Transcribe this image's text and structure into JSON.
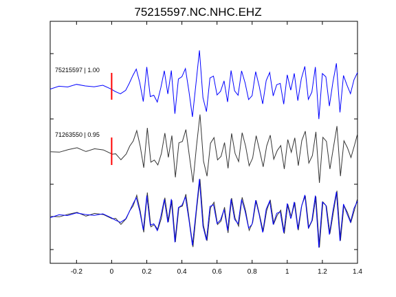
{
  "chart_data": {
    "type": "line",
    "title": "75215597.NC.NHC.EHZ",
    "xlabel": "",
    "ylabel": "",
    "xlim": [
      -0.35,
      1.4
    ],
    "xticks": [
      -0.2,
      0,
      0.2,
      0.4,
      0.6,
      0.8,
      1,
      1.2,
      1.4
    ],
    "xtick_labels": [
      "-0.2",
      "0",
      "0.2",
      "0.4",
      "0.6",
      "0.8",
      "1",
      "1.2",
      "1.4"
    ],
    "grid": false,
    "pick_time": 0,
    "traces": [
      {
        "label": "75215597 | 1.00",
        "color": "#0000ff"
      },
      {
        "label": "71263550 | 0.95",
        "color": "#333333"
      },
      {
        "label": "",
        "color": "overlay"
      }
    ],
    "waveform_template": {
      "x": [
        -0.35,
        -0.3,
        -0.25,
        -0.2,
        -0.15,
        -0.1,
        -0.05,
        0,
        0.02,
        0.05,
        0.08,
        0.1,
        0.12,
        0.14,
        0.16,
        0.18,
        0.2,
        0.22,
        0.24,
        0.26,
        0.28,
        0.3,
        0.32,
        0.34,
        0.36,
        0.38,
        0.4,
        0.42,
        0.44,
        0.46,
        0.48,
        0.5,
        0.52,
        0.54,
        0.56,
        0.58,
        0.6,
        0.62,
        0.64,
        0.66,
        0.68,
        0.7,
        0.72,
        0.74,
        0.76,
        0.78,
        0.8,
        0.82,
        0.84,
        0.86,
        0.88,
        0.9,
        0.92,
        0.94,
        0.96,
        0.98,
        1.0,
        1.02,
        1.04,
        1.06,
        1.08,
        1.1,
        1.12,
        1.14,
        1.16,
        1.18,
        1.2,
        1.22,
        1.24,
        1.26,
        1.28,
        1.3,
        1.32,
        1.34,
        1.36,
        1.38,
        1.4
      ],
      "y": [
        -0.05,
        0.0,
        0.05,
        0.06,
        0.03,
        0.05,
        0.02,
        -0.04,
        -0.1,
        -0.22,
        -0.05,
        0.1,
        0.3,
        0.55,
        0.1,
        -0.4,
        0.6,
        -0.3,
        -0.2,
        -0.4,
        -0.05,
        0.5,
        -0.2,
        0.45,
        -0.7,
        0.2,
        0.3,
        0.55,
        -0.15,
        -0.8,
        0.1,
        1.0,
        -0.25,
        -0.7,
        0.25,
        0.35,
        -0.25,
        -0.1,
        0.2,
        -0.45,
        0.5,
        -0.1,
        -0.25,
        0.5,
        0.1,
        -0.35,
        -0.2,
        0.4,
        0.05,
        -0.45,
        0.15,
        0.45,
        -0.25,
        0.05,
        0.15,
        -0.5,
        0.35,
        -0.05,
        0.35,
        -0.35,
        0.25,
        0.55,
        -0.3,
        -0.15,
        0.55,
        -0.85,
        0.35,
        0.3,
        -0.5,
        0.1,
        0.7,
        -0.7,
        0.3,
        0.1,
        -0.2,
        0.2,
        0.45
      ]
    }
  }
}
